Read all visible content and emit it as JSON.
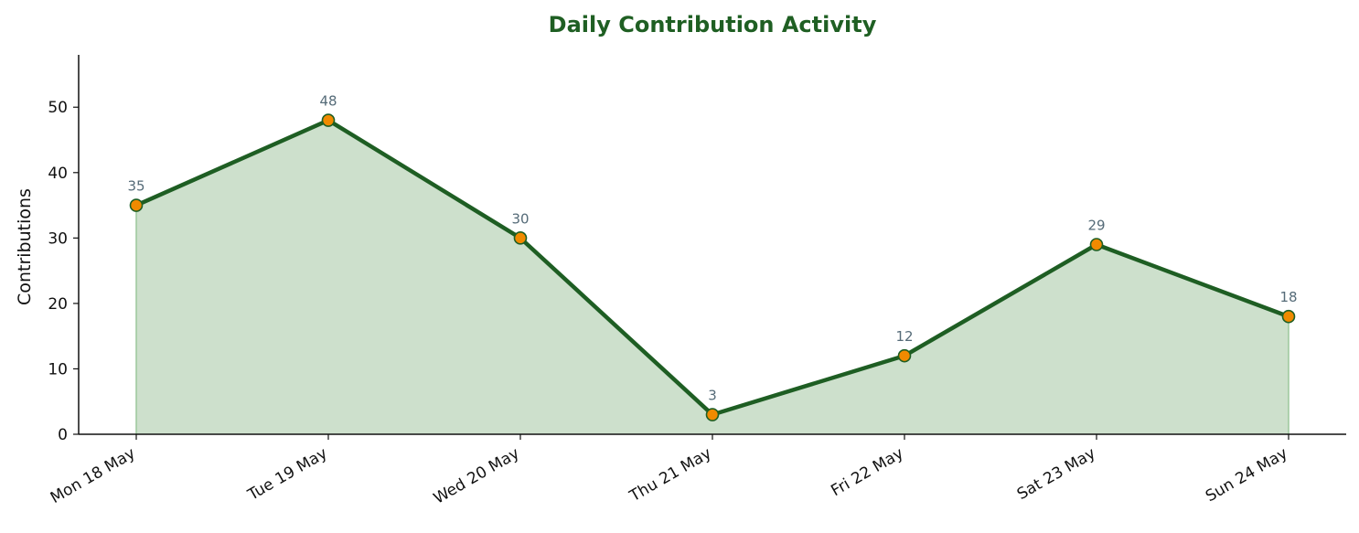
{
  "chart_data": {
    "type": "area",
    "title": "Daily Contribution Activity",
    "xlabel": "",
    "ylabel": "Contributions",
    "categories": [
      "Mon 18 May",
      "Tue 19 May",
      "Wed 20 May",
      "Thu 21 May",
      "Fri 22 May",
      "Sat 23 May",
      "Sun 24 May"
    ],
    "values": [
      35,
      48,
      30,
      3,
      12,
      29,
      18
    ],
    "data_labels": [
      "35",
      "48",
      "30",
      "3",
      "12",
      "29",
      "18"
    ],
    "ylim": [
      0,
      58
    ],
    "yticks": [
      0,
      10,
      20,
      30,
      40,
      50
    ],
    "ytick_labels": [
      "0",
      "10",
      "20",
      "30",
      "40",
      "50"
    ],
    "grid": false,
    "legend": "none",
    "colors": {
      "line": "#1e5e23",
      "fill": "#cde0cc",
      "fill_edge": "#9cc79b",
      "marker": "#f08a00",
      "marker_edge": "#1e5e23",
      "title": "#1f5f23",
      "data_label": "#556b78",
      "axis": "#111111"
    }
  }
}
